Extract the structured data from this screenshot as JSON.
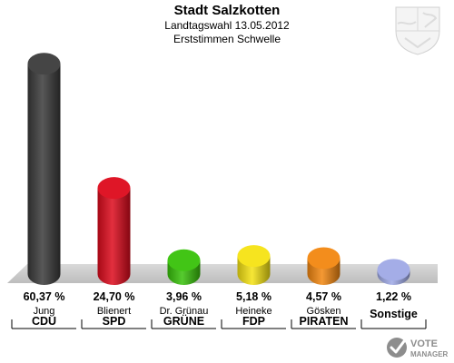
{
  "header": {
    "title": "Stadt Salzkotten",
    "subtitle1": "Landtagswahl 13.05.2012",
    "subtitle2": "Erststimmen Schwelle"
  },
  "logo": {
    "icon": "nrw-coat-of-arms-icon"
  },
  "brand": {
    "line1": "VOTE",
    "line2": "MANAGER",
    "icon": "votemanager-check-icon"
  },
  "chart_data": {
    "type": "bar",
    "title": "Stadt Salzkotten",
    "subtitle": "Landtagswahl 13.05.2012 — Erststimmen Schwelle",
    "unit": "%",
    "ylim": [
      0,
      62
    ],
    "grid": false,
    "legend": "none",
    "categories": [
      {
        "candidate": "Jung",
        "party": "CDU",
        "value": 60.37,
        "label": "60,37 %",
        "color": "#3b3b3b"
      },
      {
        "candidate": "Blienert",
        "party": "SPD",
        "value": 24.7,
        "label": "24,70 %",
        "color": "#dd0a1c"
      },
      {
        "candidate": "Dr. Grünau",
        "party": "GRÜNE",
        "value": 3.96,
        "label": "3,96 %",
        "color": "#38c20a"
      },
      {
        "candidate": "Heineke",
        "party": "FDP",
        "value": 5.18,
        "label": "5,18 %",
        "color": "#f5e313"
      },
      {
        "candidate": "Gösken",
        "party": "PIRATEN",
        "value": 4.57,
        "label": "4,57 %",
        "color": "#f28710"
      },
      {
        "candidate": "",
        "party": "Sonstige",
        "value": 1.22,
        "label": "1,22 %",
        "color": "#9fa9e6"
      }
    ]
  }
}
